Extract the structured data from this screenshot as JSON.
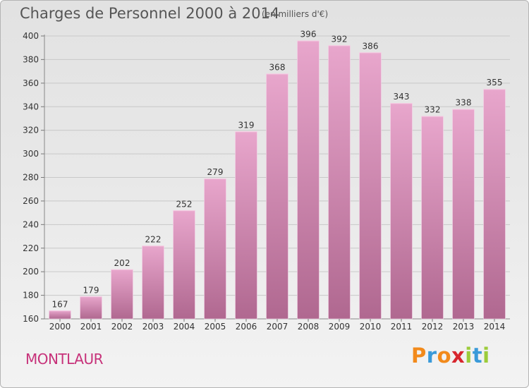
{
  "title": "Charges de Personnel 2000 à 2014",
  "unit_note": "(en milliers d'€)",
  "place": "MONTLAUR",
  "logo": {
    "text": "Proxiti",
    "letters": [
      {
        "ch": "P",
        "color": "#f28a1b"
      },
      {
        "ch": "r",
        "color": "#3a9ad9"
      },
      {
        "ch": "o",
        "color": "#f28a1b"
      },
      {
        "ch": "x",
        "color": "#d7262e"
      },
      {
        "ch": "i",
        "color": "#9ccc3a"
      },
      {
        "ch": "t",
        "color": "#3a9ad9"
      },
      {
        "ch": "i",
        "color": "#9ccc3a"
      }
    ]
  },
  "colors": {
    "bar_top": "#e8a6cc",
    "bar_bottom": "#b06890",
    "axis_text": "#333333",
    "grid": "#c8c8c8",
    "place": "#c7327a"
  },
  "chart_data": {
    "type": "bar",
    "categories": [
      "2000",
      "2001",
      "2002",
      "2003",
      "2004",
      "2005",
      "2006",
      "2007",
      "2008",
      "2009",
      "2010",
      "2011",
      "2012",
      "2013",
      "2014"
    ],
    "values": [
      167,
      179,
      202,
      222,
      252,
      279,
      319,
      368,
      396,
      392,
      386,
      343,
      332,
      338,
      355
    ],
    "ylim": [
      160,
      400
    ],
    "yticks": [
      160,
      180,
      200,
      220,
      240,
      260,
      280,
      300,
      320,
      340,
      360,
      380,
      400
    ],
    "grid": true,
    "data_labels": true
  }
}
